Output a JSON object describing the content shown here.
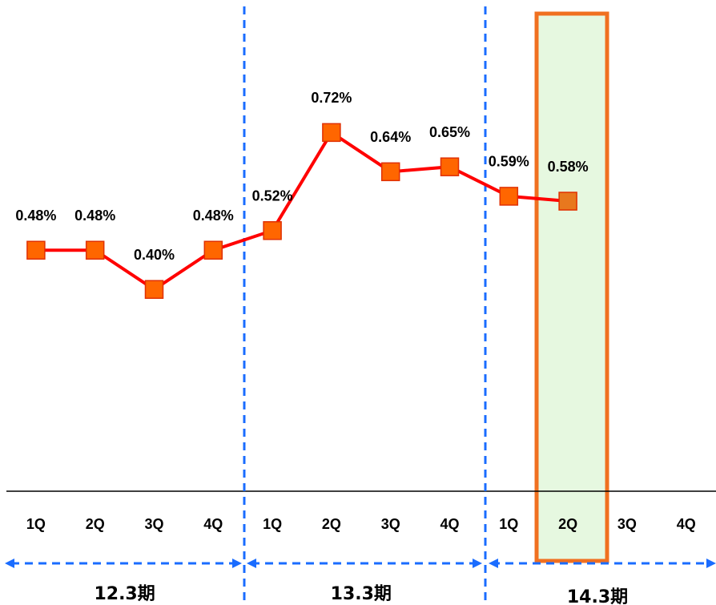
{
  "chart_data": {
    "type": "line",
    "categories": [
      "1Q",
      "2Q",
      "3Q",
      "4Q",
      "1Q",
      "2Q",
      "3Q",
      "4Q",
      "1Q",
      "2Q",
      "3Q",
      "4Q"
    ],
    "groups": [
      "12.3期",
      "13.3期",
      "14.3期"
    ],
    "ylim": [
      0,
      1
    ],
    "series": [
      {
        "color": "#ff0000",
        "marker_color": "#ff6600",
        "values": [
          0.48,
          0.48,
          0.4,
          0.48,
          0.52,
          0.72,
          0.64,
          0.65,
          0.59,
          0.58,
          null,
          null
        ],
        "value_labels": [
          "0.48%",
          "0.48%",
          "0.40%",
          "0.48%",
          "0.52%",
          "0.72%",
          "0.64%",
          "0.65%",
          "0.59%",
          "0.58%",
          null,
          null
        ]
      }
    ]
  }
}
